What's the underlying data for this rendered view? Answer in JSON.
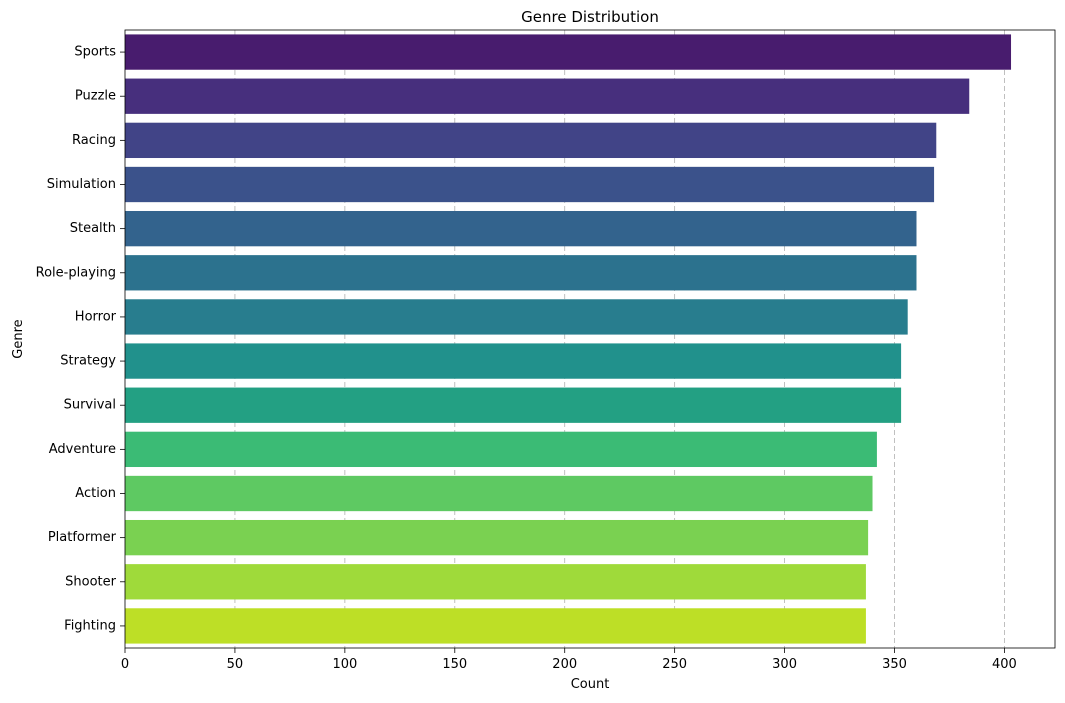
{
  "chart_data": {
    "type": "bar",
    "orientation": "horizontal",
    "title": "Genre Distribution",
    "xlabel": "Count",
    "ylabel": "Genre",
    "xlim": [
      0,
      423
    ],
    "xticks": [
      0,
      50,
      100,
      150,
      200,
      250,
      300,
      350,
      400
    ],
    "grid": "x",
    "categories": [
      "Sports",
      "Puzzle",
      "Racing",
      "Simulation",
      "Stealth",
      "Role-playing",
      "Horror",
      "Strategy",
      "Survival",
      "Adventure",
      "Action",
      "Platformer",
      "Shooter",
      "Fighting"
    ],
    "values": [
      403,
      384,
      369,
      368,
      360,
      360,
      356,
      353,
      353,
      342,
      340,
      338,
      337,
      337
    ],
    "colors": [
      "#481c6e",
      "#472f7d",
      "#414487",
      "#3b528b",
      "#33638d",
      "#2c728e",
      "#287d8e",
      "#21918c",
      "#23a083",
      "#3bbb75",
      "#5ec962",
      "#7ad151",
      "#9fda3a",
      "#bddf26"
    ]
  }
}
